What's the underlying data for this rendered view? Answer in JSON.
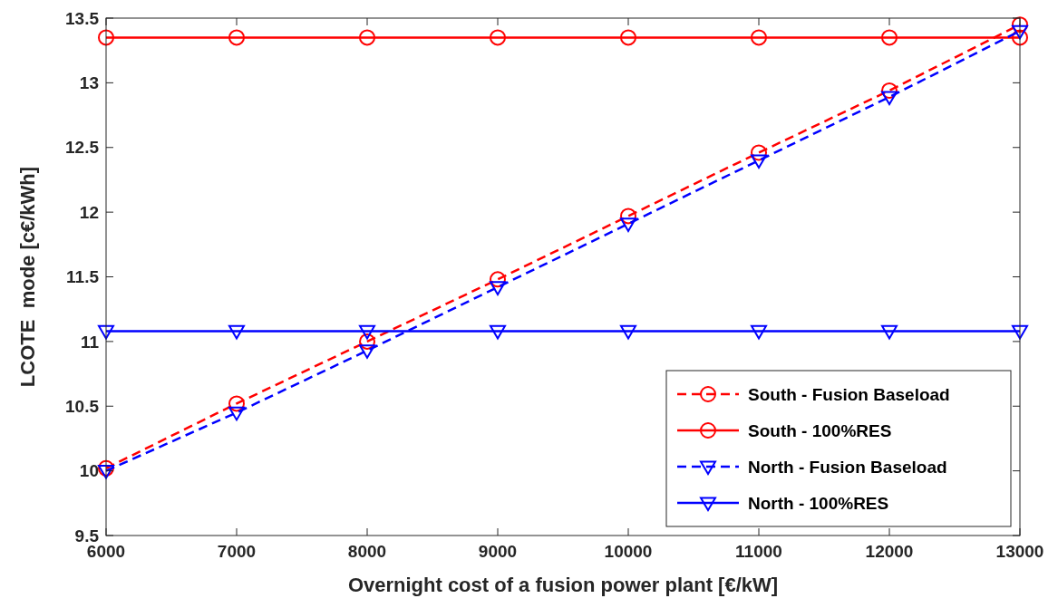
{
  "chart_data": {
    "type": "line",
    "xlabel": "Overnight cost of a fusion power plant [€/kW]",
    "ylabel": "LCOTE  mode [c€/kWh]",
    "x": [
      6000,
      7000,
      8000,
      9000,
      10000,
      11000,
      12000,
      13000
    ],
    "xlim": [
      6000,
      13000
    ],
    "xticks": [
      6000,
      7000,
      8000,
      9000,
      10000,
      11000,
      12000,
      13000
    ],
    "ylim": [
      9.5,
      13.5
    ],
    "yticks": [
      9.5,
      10,
      10.5,
      11,
      11.5,
      12,
      12.5,
      13,
      13.5
    ],
    "grid": false,
    "legend": "bottom right",
    "series": [
      {
        "name": "South - Fusion Baseload",
        "color": "#ff0000",
        "marker": "circle",
        "line_style": "dashed",
        "values": [
          10.02,
          10.52,
          11.0,
          11.48,
          11.97,
          12.46,
          12.94,
          13.45
        ]
      },
      {
        "name": "South - 100%RES",
        "color": "#ff0000",
        "marker": "circle",
        "line_style": "solid",
        "values": [
          13.35,
          13.35,
          13.35,
          13.35,
          13.35,
          13.35,
          13.35,
          13.35
        ]
      },
      {
        "name": "North - Fusion Baseload",
        "color": "#0000ff",
        "marker": "triangle",
        "line_style": "dashed",
        "values": [
          10.0,
          10.45,
          10.93,
          11.42,
          11.91,
          12.4,
          12.89,
          13.4
        ]
      },
      {
        "name": "North - 100%RES",
        "color": "#0000ff",
        "marker": "triangle",
        "line_style": "solid",
        "values": [
          11.08,
          11.08,
          11.08,
          11.08,
          11.08,
          11.08,
          11.08,
          11.08
        ]
      }
    ]
  }
}
